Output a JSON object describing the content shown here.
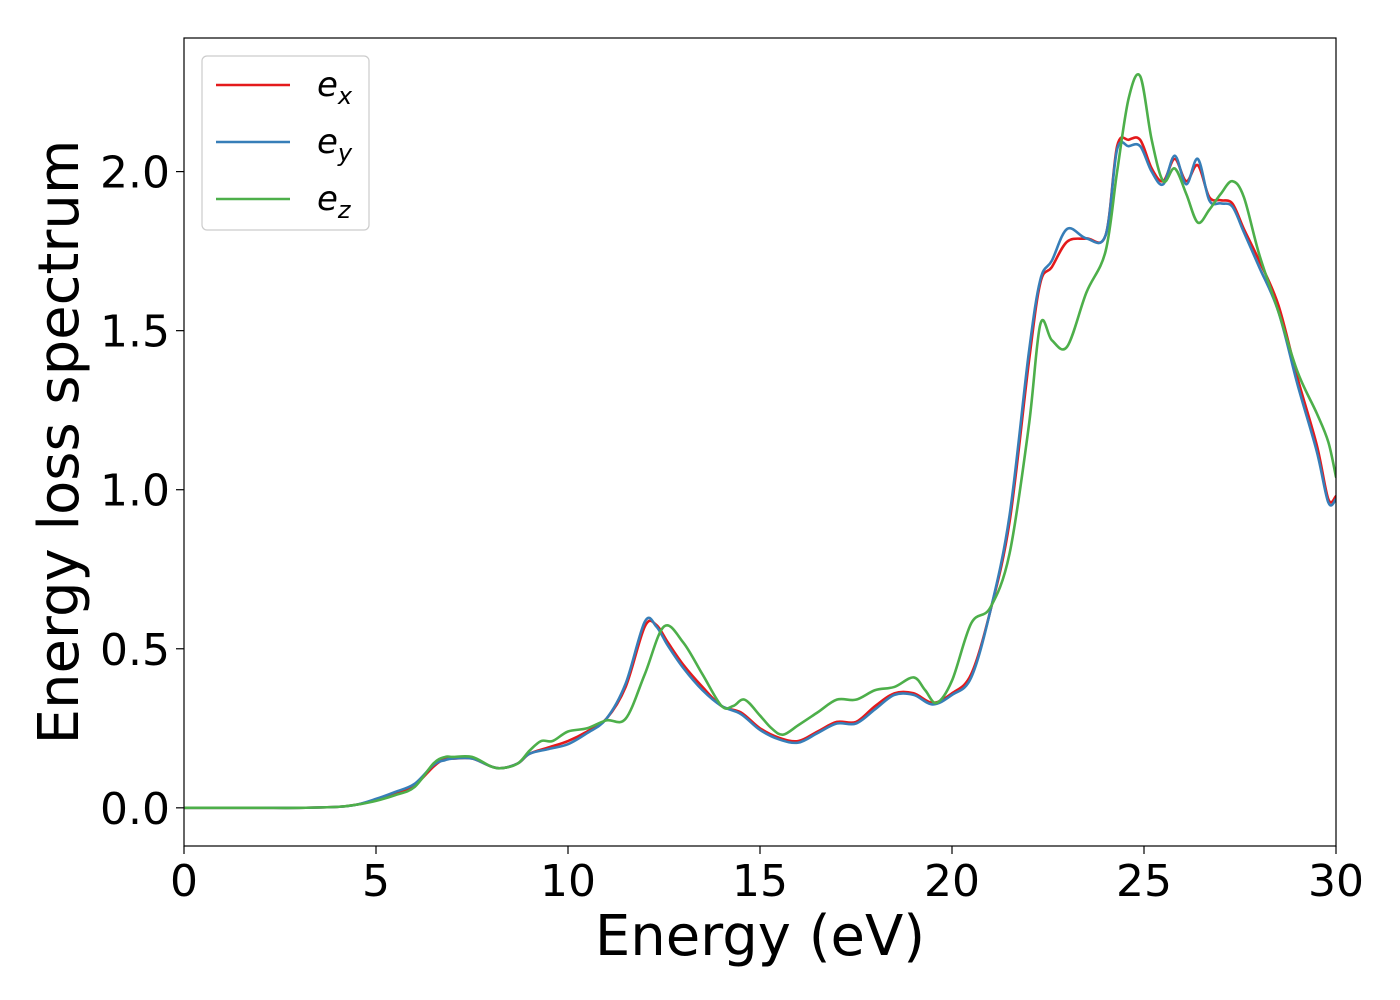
{
  "chart_data": {
    "type": "line",
    "title": "",
    "xlabel": "Energy (eV)",
    "ylabel": "Energy loss spectrum",
    "xlim": [
      0,
      30
    ],
    "ylim": [
      -0.12,
      2.42
    ],
    "xticks": [
      0,
      5,
      10,
      15,
      20,
      25,
      30
    ],
    "xtick_labels": [
      "0",
      "5",
      "10",
      "15",
      "20",
      "25",
      "30"
    ],
    "yticks": [
      0.0,
      0.5,
      1.0,
      1.5,
      2.0
    ],
    "ytick_labels": [
      "0.0",
      "0.5",
      "1.0",
      "1.5",
      "2.0"
    ],
    "grid": false,
    "legend_position": "top-left",
    "series": [
      {
        "name": "e_x",
        "label_base": "e",
        "label_sub": "x",
        "color": "#e41a1c",
        "x": [
          0,
          1,
          2,
          3,
          4,
          4.5,
          5,
          5.5,
          6,
          6.5,
          6.8,
          7,
          7.5,
          8,
          8.3,
          8.7,
          9,
          9.5,
          10,
          10.5,
          11,
          11.5,
          12,
          12.3,
          12.6,
          13,
          13.5,
          14,
          14.5,
          15,
          15.5,
          16,
          16.5,
          17,
          17.5,
          18,
          18.5,
          19,
          19.5,
          20,
          20.5,
          21,
          21.5,
          22,
          22.3,
          22.6,
          23,
          23.5,
          24,
          24.3,
          24.6,
          24.9,
          25.2,
          25.5,
          25.8,
          26.1,
          26.4,
          26.7,
          27,
          27.3,
          27.6,
          28,
          28.5,
          29,
          29.5,
          29.8,
          30
        ],
        "y": [
          0,
          0,
          0,
          0,
          0.003,
          0.01,
          0.025,
          0.045,
          0.07,
          0.13,
          0.155,
          0.155,
          0.155,
          0.13,
          0.125,
          0.14,
          0.17,
          0.19,
          0.21,
          0.24,
          0.28,
          0.38,
          0.57,
          0.575,
          0.52,
          0.45,
          0.38,
          0.32,
          0.3,
          0.25,
          0.22,
          0.21,
          0.24,
          0.27,
          0.27,
          0.32,
          0.36,
          0.36,
          0.33,
          0.36,
          0.42,
          0.62,
          0.9,
          1.4,
          1.65,
          1.7,
          1.78,
          1.79,
          1.8,
          2.08,
          2.1,
          2.1,
          2.01,
          1.97,
          2.04,
          1.97,
          2.02,
          1.92,
          1.91,
          1.9,
          1.82,
          1.72,
          1.58,
          1.35,
          1.14,
          0.97,
          0.98
        ]
      },
      {
        "name": "e_y",
        "label_base": "e",
        "label_sub": "y",
        "color": "#377eb8",
        "x": [
          0,
          1,
          2,
          3,
          4,
          4.5,
          5,
          5.5,
          6,
          6.5,
          6.8,
          7,
          7.5,
          8,
          8.3,
          8.7,
          9,
          9.5,
          10,
          10.5,
          11,
          11.5,
          12,
          12.3,
          12.6,
          13,
          13.5,
          14,
          14.5,
          15,
          15.5,
          16,
          16.5,
          17,
          17.5,
          18,
          18.5,
          19,
          19.5,
          20,
          20.5,
          21,
          21.5,
          22,
          22.3,
          22.6,
          23,
          23.5,
          24,
          24.3,
          24.6,
          24.9,
          25.2,
          25.5,
          25.8,
          26.1,
          26.4,
          26.7,
          27,
          27.3,
          27.6,
          28,
          28.5,
          29,
          29.5,
          29.8,
          30
        ],
        "y": [
          0,
          0,
          0,
          0,
          0.003,
          0.01,
          0.028,
          0.05,
          0.075,
          0.135,
          0.15,
          0.155,
          0.155,
          0.13,
          0.125,
          0.14,
          0.17,
          0.185,
          0.2,
          0.235,
          0.28,
          0.39,
          0.585,
          0.57,
          0.51,
          0.44,
          0.37,
          0.32,
          0.295,
          0.245,
          0.215,
          0.205,
          0.235,
          0.265,
          0.265,
          0.31,
          0.355,
          0.355,
          0.325,
          0.355,
          0.41,
          0.62,
          0.92,
          1.43,
          1.66,
          1.72,
          1.82,
          1.79,
          1.8,
          2.07,
          2.08,
          2.08,
          2.0,
          1.96,
          2.05,
          1.96,
          2.04,
          1.91,
          1.9,
          1.89,
          1.81,
          1.7,
          1.56,
          1.33,
          1.12,
          0.96,
          0.97
        ]
      },
      {
        "name": "e_z",
        "label_base": "e",
        "label_sub": "z",
        "color": "#4daf4a",
        "x": [
          0,
          1,
          2,
          3,
          4,
          4.5,
          5,
          5.5,
          6,
          6.5,
          6.8,
          7,
          7.5,
          8,
          8.3,
          8.7,
          9,
          9.3,
          9.6,
          10,
          10.5,
          11,
          11.5,
          12,
          12.5,
          13,
          13.5,
          14,
          14.3,
          14.6,
          15,
          15.3,
          15.6,
          16,
          16.5,
          17,
          17.5,
          18,
          18.5,
          19,
          19.3,
          19.6,
          20,
          20.5,
          21,
          21.5,
          22,
          22.3,
          22.6,
          23,
          23.5,
          24,
          24.3,
          24.6,
          24.9,
          25.2,
          25.5,
          25.8,
          26.1,
          26.4,
          26.7,
          27,
          27.3,
          27.6,
          28,
          28.5,
          29,
          29.5,
          29.8,
          30
        ],
        "y": [
          0,
          0,
          0,
          0,
          0.003,
          0.01,
          0.022,
          0.04,
          0.065,
          0.14,
          0.16,
          0.16,
          0.16,
          0.13,
          0.125,
          0.14,
          0.18,
          0.21,
          0.21,
          0.24,
          0.25,
          0.275,
          0.28,
          0.42,
          0.57,
          0.52,
          0.42,
          0.32,
          0.32,
          0.34,
          0.29,
          0.25,
          0.23,
          0.26,
          0.3,
          0.34,
          0.34,
          0.37,
          0.38,
          0.41,
          0.37,
          0.33,
          0.4,
          0.58,
          0.63,
          0.8,
          1.2,
          1.52,
          1.47,
          1.45,
          1.62,
          1.75,
          2.0,
          2.23,
          2.3,
          2.1,
          1.97,
          2.01,
          1.93,
          1.84,
          1.88,
          1.93,
          1.97,
          1.92,
          1.74,
          1.56,
          1.37,
          1.24,
          1.15,
          1.04
        ]
      }
    ]
  }
}
